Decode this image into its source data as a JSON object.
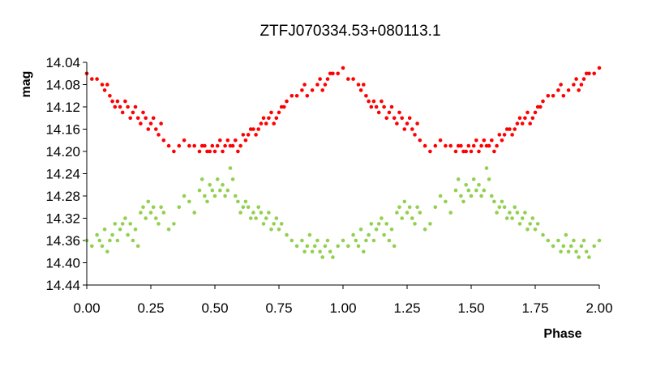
{
  "chart_data": {
    "type": "scatter",
    "title": "ZTFJ070334.53+080113.1",
    "xlabel": "Phase",
    "ylabel": "mag",
    "xlim": [
      0,
      2
    ],
    "ylim": [
      14.44,
      14.04
    ],
    "y_inverted": true,
    "grid": false,
    "legend": "none",
    "x_ticks": [
      "0.00",
      "0.25",
      "0.50",
      "0.75",
      "1.00",
      "1.25",
      "1.50",
      "1.75",
      "2.00"
    ],
    "y_ticks": [
      "14.04",
      "14.08",
      "14.12",
      "14.16",
      "14.20",
      "14.24",
      "14.28",
      "14.32",
      "14.36",
      "14.40",
      "14.44"
    ],
    "series": [
      {
        "color": "#ff0000",
        "x": [
          0.0,
          0.02,
          0.04,
          0.06,
          0.07,
          0.08,
          0.09,
          0.1,
          0.11,
          0.12,
          0.13,
          0.14,
          0.15,
          0.16,
          0.17,
          0.18,
          0.19,
          0.2,
          0.21,
          0.22,
          0.23,
          0.24,
          0.25,
          0.26,
          0.27,
          0.28,
          0.29,
          0.3,
          0.32,
          0.34,
          0.36,
          0.38,
          0.4,
          0.42,
          0.44,
          0.45,
          0.46,
          0.47,
          0.48,
          0.49,
          0.5,
          0.51,
          0.52,
          0.53,
          0.54,
          0.55,
          0.56,
          0.57,
          0.58,
          0.59,
          0.6,
          0.61,
          0.62,
          0.63,
          0.64,
          0.65,
          0.66,
          0.67,
          0.68,
          0.69,
          0.7,
          0.71,
          0.72,
          0.73,
          0.74,
          0.75,
          0.76,
          0.77,
          0.78,
          0.8,
          0.82,
          0.84,
          0.85,
          0.86,
          0.88,
          0.9,
          0.91,
          0.92,
          0.93,
          0.94,
          0.95,
          0.96,
          0.98,
          1.0
        ],
        "y": [
          14.06,
          14.07,
          14.07,
          14.08,
          14.09,
          14.08,
          14.1,
          14.11,
          14.12,
          14.11,
          14.12,
          14.13,
          14.11,
          14.12,
          14.14,
          14.13,
          14.12,
          14.14,
          14.15,
          14.13,
          14.14,
          14.16,
          14.15,
          14.14,
          14.16,
          14.17,
          14.15,
          14.18,
          14.19,
          14.2,
          14.19,
          14.18,
          14.19,
          14.19,
          14.2,
          14.19,
          14.19,
          14.2,
          14.2,
          14.19,
          14.2,
          14.19,
          14.18,
          14.2,
          14.19,
          14.18,
          14.19,
          14.19,
          14.18,
          14.2,
          14.19,
          14.17,
          14.18,
          14.17,
          14.16,
          14.16,
          14.17,
          14.16,
          14.15,
          14.14,
          14.15,
          14.14,
          14.13,
          14.15,
          14.14,
          14.13,
          14.12,
          14.12,
          14.11,
          14.1,
          14.1,
          14.09,
          14.08,
          14.1,
          14.09,
          14.08,
          14.07,
          14.09,
          14.08,
          14.07,
          14.06,
          14.06,
          14.06,
          14.05
        ]
      },
      {
        "color": "#92d050",
        "x": [
          0.0,
          0.02,
          0.04,
          0.05,
          0.06,
          0.07,
          0.08,
          0.09,
          0.1,
          0.11,
          0.12,
          0.13,
          0.14,
          0.15,
          0.16,
          0.17,
          0.18,
          0.19,
          0.2,
          0.21,
          0.22,
          0.23,
          0.24,
          0.25,
          0.26,
          0.27,
          0.28,
          0.29,
          0.3,
          0.32,
          0.34,
          0.36,
          0.38,
          0.4,
          0.42,
          0.44,
          0.45,
          0.46,
          0.47,
          0.48,
          0.49,
          0.5,
          0.51,
          0.52,
          0.53,
          0.54,
          0.55,
          0.56,
          0.57,
          0.58,
          0.59,
          0.6,
          0.61,
          0.62,
          0.63,
          0.64,
          0.65,
          0.66,
          0.67,
          0.68,
          0.69,
          0.7,
          0.71,
          0.72,
          0.73,
          0.74,
          0.75,
          0.76,
          0.78,
          0.8,
          0.82,
          0.84,
          0.85,
          0.86,
          0.87,
          0.88,
          0.89,
          0.9,
          0.91,
          0.92,
          0.93,
          0.94,
          0.95,
          0.96,
          0.98,
          1.0
        ],
        "y": [
          14.36,
          14.37,
          14.35,
          14.36,
          14.37,
          14.34,
          14.38,
          14.36,
          14.35,
          14.33,
          14.36,
          14.34,
          14.33,
          14.32,
          14.35,
          14.33,
          14.36,
          14.34,
          14.37,
          14.31,
          14.3,
          14.32,
          14.29,
          14.31,
          14.3,
          14.32,
          14.33,
          14.3,
          14.31,
          14.34,
          14.33,
          14.3,
          14.28,
          14.29,
          14.31,
          14.27,
          14.25,
          14.28,
          14.29,
          14.26,
          14.27,
          14.28,
          14.25,
          14.27,
          14.26,
          14.28,
          14.27,
          14.23,
          14.25,
          14.28,
          14.29,
          14.31,
          14.3,
          14.29,
          14.3,
          14.32,
          14.31,
          14.32,
          14.3,
          14.31,
          14.33,
          14.32,
          14.31,
          14.34,
          14.33,
          14.32,
          14.34,
          14.33,
          14.35,
          14.36,
          14.37,
          14.36,
          14.38,
          14.37,
          14.35,
          14.38,
          14.37,
          14.36,
          14.38,
          14.39,
          14.37,
          14.36,
          14.38,
          14.39,
          14.37,
          14.36
        ]
      }
    ]
  }
}
